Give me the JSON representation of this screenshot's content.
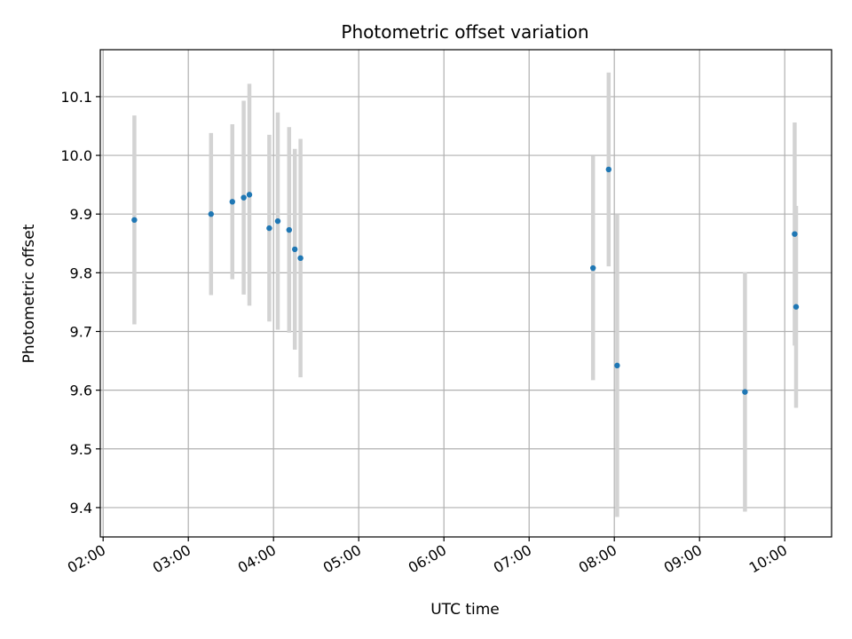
{
  "chart_data": {
    "type": "scatter",
    "title": "Photometric offset variation",
    "xlabel": "UTC time",
    "ylabel": "Photometric offset",
    "x_ticks": [
      "02:00",
      "03:00",
      "04:00",
      "05:00",
      "06:00",
      "07:00",
      "08:00",
      "09:00",
      "10:00"
    ],
    "y_ticks": [
      9.4,
      9.5,
      9.6,
      9.7,
      9.8,
      9.9,
      10.0,
      10.1
    ],
    "y_tick_labels": [
      "9.4",
      "9.5",
      "9.6",
      "9.7",
      "9.8",
      "9.9",
      "10.0",
      "10.1"
    ],
    "xlim": [
      "01:58",
      "10:33"
    ],
    "ylim": [
      9.35,
      10.18
    ],
    "grid": true,
    "marker_color": "#1f77b4",
    "errorbar_color": "#d3d3d3",
    "points": [
      {
        "x": "02:22",
        "y": 9.89,
        "ylo": 9.712,
        "yhi": 10.068
      },
      {
        "x": "03:16",
        "y": 9.9,
        "ylo": 9.762,
        "yhi": 10.038
      },
      {
        "x": "03:31",
        "y": 9.921,
        "ylo": 9.789,
        "yhi": 10.053
      },
      {
        "x": "03:39",
        "y": 9.928,
        "ylo": 9.763,
        "yhi": 10.093
      },
      {
        "x": "03:43",
        "y": 9.933,
        "ylo": 9.744,
        "yhi": 10.122
      },
      {
        "x": "03:57",
        "y": 9.876,
        "ylo": 9.717,
        "yhi": 10.035
      },
      {
        "x": "04:03",
        "y": 9.888,
        "ylo": 9.703,
        "yhi": 10.073
      },
      {
        "x": "04:11",
        "y": 9.873,
        "ylo": 9.698,
        "yhi": 10.048
      },
      {
        "x": "04:15",
        "y": 9.84,
        "ylo": 9.669,
        "yhi": 10.011
      },
      {
        "x": "04:19",
        "y": 9.825,
        "ylo": 9.622,
        "yhi": 10.028
      },
      {
        "x": "07:45",
        "y": 9.808,
        "ylo": 9.617,
        "yhi": 9.999
      },
      {
        "x": "07:56",
        "y": 9.976,
        "ylo": 9.811,
        "yhi": 10.141
      },
      {
        "x": "08:02",
        "y": 9.642,
        "ylo": 9.384,
        "yhi": 9.9
      },
      {
        "x": "09:32",
        "y": 9.597,
        "ylo": 9.393,
        "yhi": 9.801
      },
      {
        "x": "10:07",
        "y": 9.866,
        "ylo": 9.676,
        "yhi": 10.056
      },
      {
        "x": "10:08",
        "y": 9.742,
        "ylo": 9.57,
        "yhi": 9.914
      }
    ]
  }
}
